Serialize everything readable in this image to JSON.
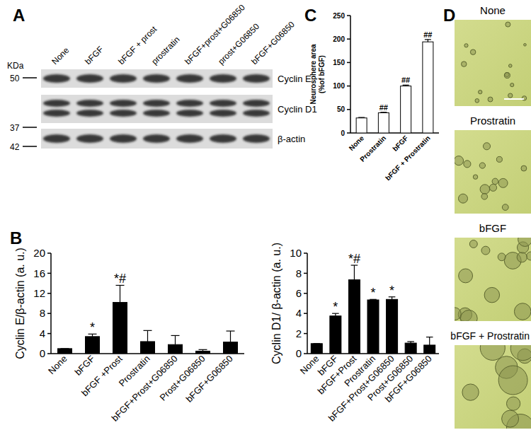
{
  "panel_labels": [
    "A",
    "B",
    "C",
    "D"
  ],
  "blot": {
    "kda_label": "KDa",
    "lanes": [
      "None",
      "bFGF",
      "bFGF + prost",
      "prostratin",
      "bFGF+prost+G06850",
      "prost+G06850",
      "bFGF+G06850"
    ],
    "rows": [
      {
        "name": "Cyclin E",
        "kda": 50
      },
      {
        "name": "Cyclin D1",
        "kda": 37
      },
      {
        "name": "β-actin",
        "kda": 42
      }
    ]
  },
  "chart_data": [
    {
      "type": "bar",
      "y_label": "Cyclin E/β-actin (a. u.)",
      "categories": [
        "None",
        "bFGF",
        "bFGF +Prost",
        "Prostratin",
        "bFGF+Prost+G06850",
        "Prost+G06850",
        "bFGF+G06850"
      ],
      "values": [
        1,
        3.4,
        10.2,
        2.4,
        1.8,
        0.5,
        2.3
      ],
      "errors": [
        0,
        0.5,
        3.4,
        2.2,
        1.8,
        0.3,
        2.2
      ],
      "significance": [
        null,
        "*",
        "*#",
        null,
        null,
        null,
        null
      ],
      "color": "#000000",
      "ylim": [
        0,
        20
      ],
      "yticks": [
        0,
        4,
        8,
        12,
        16,
        20
      ]
    },
    {
      "type": "bar",
      "y_label": "Cyclin D1/ β-actin (a. u.)",
      "categories": [
        "None",
        "bFGF",
        "bFGF+Prost",
        "Prostratin",
        "bFGF+Prost+G06850",
        "Prost+G06850",
        "bFGF+G06850"
      ],
      "values": [
        1,
        3.75,
        7.35,
        5.35,
        5.4,
        1.05,
        0.85
      ],
      "errors": [
        0,
        0.25,
        1.45,
        0.05,
        0.25,
        0.15,
        0.8
      ],
      "significance": [
        null,
        "*",
        "*#",
        "*",
        "*",
        null,
        null
      ],
      "color": "#000000",
      "ylim": [
        0,
        10
      ],
      "yticks": [
        0,
        2,
        4,
        6,
        8,
        10
      ]
    },
    {
      "type": "bar",
      "y_label": [
        "Neurosphere area",
        "(%of bFGF)"
      ],
      "categories": [
        "None",
        "Prostratin",
        "bFGF",
        "bFGF + Prostratin"
      ],
      "values": [
        32,
        43,
        100,
        194
      ],
      "errors": [
        1,
        1,
        2,
        5
      ],
      "significance": [
        null,
        "##",
        "##",
        "##"
      ],
      "color": "#ffffff",
      "ylim": [
        0,
        250
      ],
      "yticks": [
        0,
        50,
        100,
        150,
        200,
        250
      ]
    }
  ],
  "micrographs": {
    "titles": [
      "None",
      "Prostratin",
      "bFGF",
      "bFGF + Prostratin"
    ]
  }
}
